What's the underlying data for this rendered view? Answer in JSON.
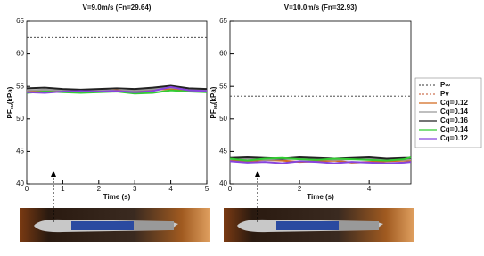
{
  "chart_data": [
    {
      "type": "line",
      "title": "V=9.0m/s (Fn=29.64)",
      "x_label": "Time (s)",
      "y_label": "PF",
      "y_label_sub": "ou",
      "y_label_unit": "(kPa)",
      "x": [
        0,
        0.5,
        1,
        1.5,
        2,
        2.5,
        3,
        3.5,
        4,
        4.5,
        5
      ],
      "xlim": [
        0,
        5
      ],
      "xticks": [
        0,
        1,
        2,
        3,
        4,
        5
      ],
      "ylim": [
        40,
        65
      ],
      "yticks": [
        40,
        45,
        50,
        55,
        60,
        65
      ],
      "series": [
        {
          "name": "P∞",
          "color": "#333333",
          "dash": true,
          "values": [
            62.5,
            62.5,
            62.5,
            62.5,
            62.5,
            62.5,
            62.5,
            62.5,
            62.5,
            62.5,
            62.5
          ]
        },
        {
          "name": "Pv",
          "color": "#c0502a",
          "dash": true,
          "values": [
            null,
            null,
            null,
            null,
            null,
            null,
            null,
            null,
            null,
            null,
            null
          ]
        },
        {
          "name": "Cq=0.12",
          "color": "#d2691e",
          "values": [
            54.2,
            54.4,
            54.3,
            54.1,
            54.3,
            54.4,
            54.2,
            54.5,
            54.6,
            54.3,
            54.2
          ]
        },
        {
          "name": "Cq=0.14",
          "color": "#999999",
          "values": [
            54.4,
            54.5,
            54.4,
            54.3,
            54.5,
            54.3,
            54.4,
            54.6,
            54.8,
            54.5,
            54.4
          ]
        },
        {
          "name": "Cq=0.16",
          "color": "#222222",
          "values": [
            54.7,
            54.8,
            54.6,
            54.5,
            54.6,
            54.7,
            54.6,
            54.8,
            55.1,
            54.7,
            54.6
          ]
        },
        {
          "name": "Cq=0.14",
          "color": "#33cc33",
          "values": [
            54.0,
            54.2,
            54.1,
            54.0,
            54.1,
            54.2,
            53.9,
            54.0,
            54.4,
            54.2,
            54.1
          ]
        },
        {
          "name": "Cq=0.12",
          "color": "#8844dd",
          "values": [
            54.1,
            54.0,
            54.2,
            54.3,
            54.2,
            54.3,
            54.1,
            54.3,
            54.9,
            54.4,
            54.3
          ]
        }
      ]
    },
    {
      "type": "line",
      "title": "V=10.0m/s (Fn=32.93)",
      "x_label": "Time (s)",
      "y_label": "PF",
      "y_label_sub": "ou",
      "y_label_unit": "(kPa)",
      "x": [
        0,
        0.5,
        1,
        1.5,
        2,
        2.5,
        3,
        3.5,
        4,
        4.5,
        5,
        5.2
      ],
      "xlim": [
        0,
        5.2
      ],
      "xticks": [
        0,
        2,
        4
      ],
      "ylim": [
        40,
        65
      ],
      "yticks": [
        40,
        45,
        50,
        55,
        60,
        65
      ],
      "series": [
        {
          "name": "P∞",
          "color": "#333333",
          "dash": true,
          "values": [
            53.5,
            53.5,
            53.5,
            53.5,
            53.5,
            53.5,
            53.5,
            53.5,
            53.5,
            53.5,
            53.5,
            53.5
          ]
        },
        {
          "name": "Pv",
          "color": "#c0502a",
          "dash": true,
          "values": [
            null,
            null,
            null,
            null,
            null,
            null,
            null,
            null,
            null,
            null,
            null,
            null
          ]
        },
        {
          "name": "Cq=0.12",
          "color": "#d2691e",
          "values": [
            43.6,
            43.5,
            43.7,
            43.6,
            43.4,
            43.5,
            43.6,
            43.3,
            43.4,
            43.5,
            43.6,
            43.5
          ]
        },
        {
          "name": "Cq=0.14",
          "color": "#999999",
          "values": [
            43.8,
            43.9,
            43.7,
            43.8,
            43.9,
            43.8,
            43.7,
            43.8,
            43.9,
            43.8,
            43.7,
            43.8
          ]
        },
        {
          "name": "Cq=0.16",
          "color": "#222222",
          "values": [
            44.0,
            44.1,
            44.0,
            43.9,
            44.1,
            44.0,
            43.9,
            44.0,
            44.1,
            43.9,
            44.0,
            44.0
          ]
        },
        {
          "name": "Cq=0.14",
          "color": "#33cc33",
          "values": [
            43.9,
            43.6,
            43.9,
            44.0,
            43.8,
            43.7,
            43.9,
            43.8,
            43.7,
            43.6,
            43.8,
            44.1
          ]
        },
        {
          "name": "Cq=0.12",
          "color": "#8844dd",
          "values": [
            43.5,
            43.3,
            43.4,
            43.2,
            43.5,
            43.4,
            43.2,
            43.4,
            43.3,
            43.2,
            43.3,
            43.4
          ]
        }
      ]
    }
  ]
}
